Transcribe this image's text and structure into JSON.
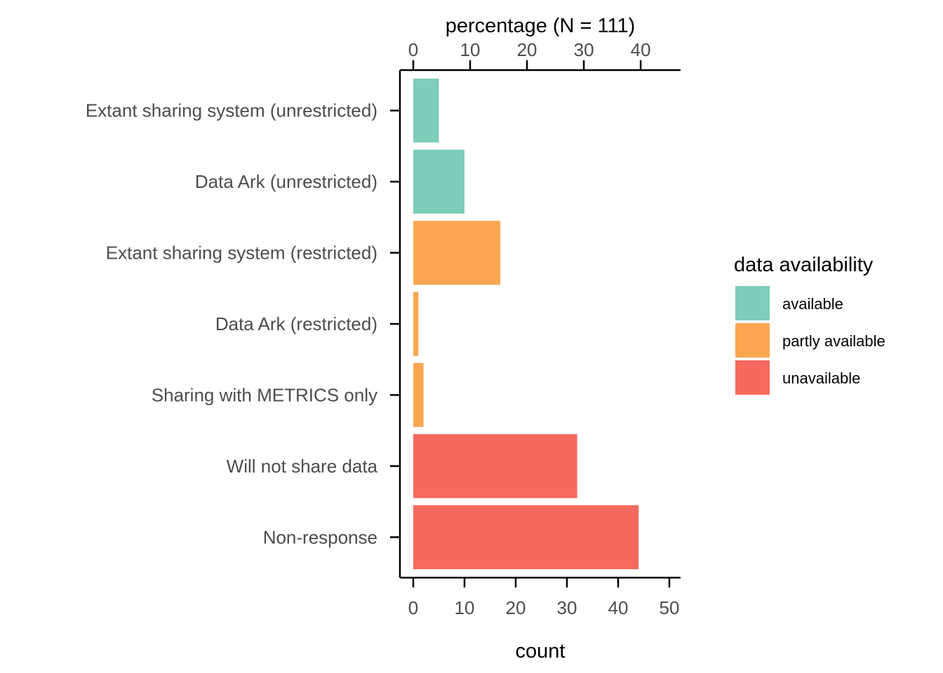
{
  "chart_data": {
    "type": "bar",
    "orientation": "horizontal",
    "categories": [
      "Extant sharing system (unrestricted)",
      "Data Ark (unrestricted)",
      "Extant sharing system (restricted)",
      "Data Ark (restricted)",
      "Sharing with METRICS only",
      "Will not share data",
      "Non-response"
    ],
    "values": [
      5,
      10,
      17,
      1,
      2,
      32,
      44
    ],
    "groups": [
      "available",
      "available",
      "partly available",
      "partly available",
      "partly available",
      "unavailable",
      "unavailable"
    ],
    "xlabel": "count",
    "xlim": [
      0,
      52
    ],
    "x_ticks": [
      0,
      10,
      20,
      30,
      40,
      50
    ],
    "secondary_xlabel": "percentage (N = 111)",
    "secondary_x_ticks": [
      0,
      10,
      20,
      30,
      40
    ],
    "secondary_total": 111,
    "grid": false,
    "legend": {
      "title": "data availability",
      "position": "right",
      "items": [
        {
          "label": "available",
          "color": "#7FCDBB"
        },
        {
          "label": "partly available",
          "color": "#FBA651"
        },
        {
          "label": "unavailable",
          "color": "#F6695E"
        }
      ]
    }
  }
}
